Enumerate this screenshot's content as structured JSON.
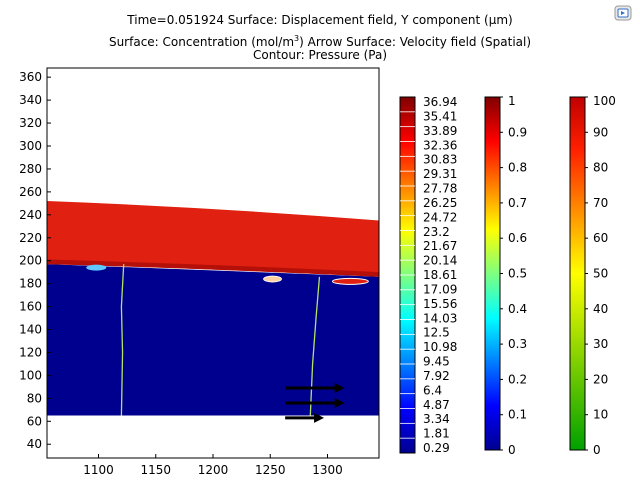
{
  "title": {
    "line1": "Time=0.051924   Surface: Displacement field, Y component (µm)",
    "line2_prefix": "Surface: Concentration (mol/m",
    "line2_sup": "3",
    "line2_suffix": ")  Arrow Surface: Velocity field (Spatial)",
    "line3": "Contour: Pressure (Pa)"
  },
  "toolbar": {
    "export_icon": "export-image-icon"
  },
  "chart_data": {
    "type": "heatmap",
    "x_ticks": [
      1100,
      1150,
      1200,
      1250,
      1300
    ],
    "y_ticks": [
      40,
      60,
      80,
      100,
      120,
      140,
      160,
      180,
      200,
      220,
      240,
      260,
      280,
      300,
      320,
      340,
      360
    ],
    "xlim": [
      1055,
      1345
    ],
    "ylim": [
      28,
      368
    ],
    "domain_xlim": [
      1055,
      1345
    ],
    "domain_ylim": [
      65,
      197
    ],
    "top_layer": {
      "left_top": 252,
      "right_top": 235,
      "left_bottom": 197,
      "right_bottom": 186,
      "color": "#e02010"
    },
    "fluid_color": "#00008f",
    "pressure_contours": [
      {
        "points": [
          [
            1122,
            197
          ],
          [
            1120,
            160
          ],
          [
            1121,
            120
          ],
          [
            1120,
            65
          ]
        ]
      },
      {
        "points": [
          [
            1293,
            186
          ],
          [
            1290,
            150
          ],
          [
            1287,
            110
          ],
          [
            1285,
            65
          ]
        ]
      }
    ],
    "velocity_arrows": [
      {
        "x": 1263,
        "y": 89,
        "length": 52
      },
      {
        "x": 1263,
        "y": 76,
        "length": 52
      },
      {
        "x": 1263,
        "y": 63,
        "length": 34
      }
    ],
    "colorbars": [
      {
        "name": "Displacement",
        "labels": [
          "36.94",
          "35.41",
          "33.89",
          "32.36",
          "30.83",
          "29.31",
          "27.78",
          "26.25",
          "24.72",
          "23.2",
          "21.67",
          "20.14",
          "18.61",
          "17.09",
          "15.56",
          "14.03",
          "12.5",
          "10.98",
          "9.45",
          "7.92",
          "6.4",
          "4.87",
          "3.34",
          "1.81",
          "0.29"
        ],
        "min": 0.29,
        "max": 36.94
      },
      {
        "name": "Concentration",
        "labels": [
          "1",
          "0.9",
          "0.8",
          "0.7",
          "0.6",
          "0.5",
          "0.4",
          "0.3",
          "0.2",
          "0.1",
          "0"
        ],
        "min": 0,
        "max": 1
      },
      {
        "name": "Pressure",
        "labels": [
          "100",
          "90",
          "80",
          "70",
          "60",
          "50",
          "40",
          "30",
          "20",
          "10",
          "0"
        ],
        "min": 0,
        "max": 100
      }
    ]
  }
}
